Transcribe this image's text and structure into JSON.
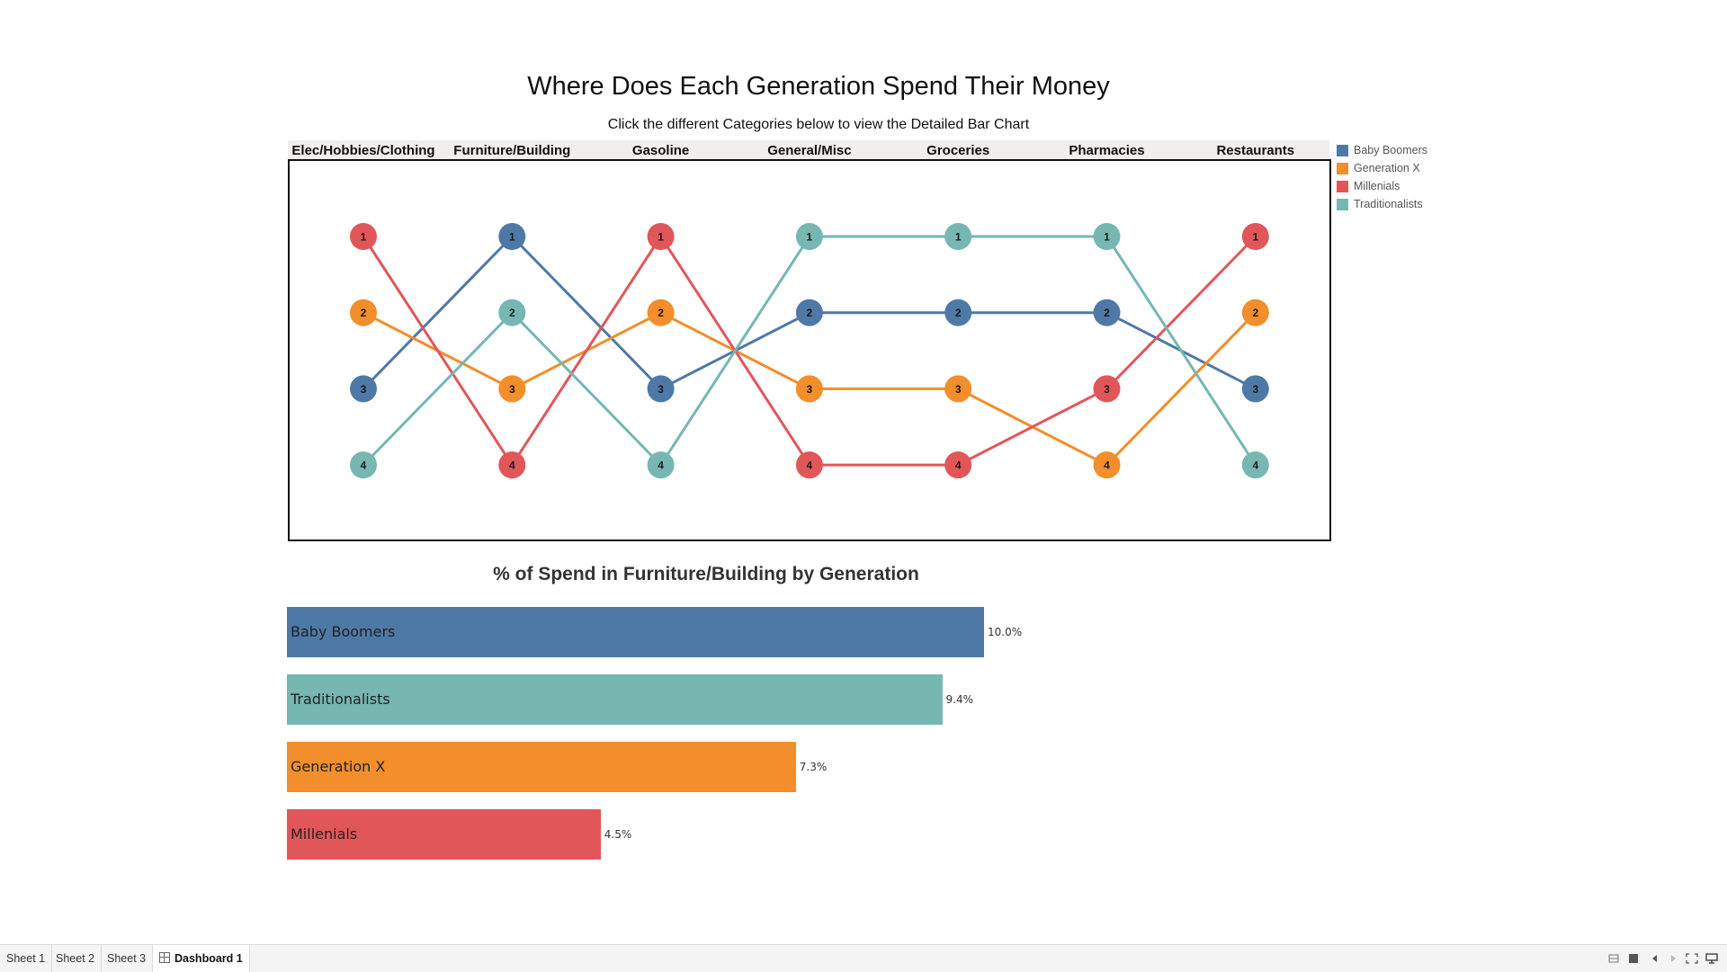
{
  "dashboard": {
    "title": "Where Does Each Generation Spend Their Money",
    "subtitle": "Click the different Categories below to view the Detailed Bar Chart"
  },
  "chart_data": [
    {
      "type": "line",
      "categories": [
        "Elec/Hobbies/Clothing",
        "Furniture/Building",
        "Gasoline",
        "General/Misc",
        "Groceries",
        "Pharmacies",
        "Restaurants"
      ],
      "y_reversed": true,
      "ylim": [
        1,
        4
      ],
      "series": [
        {
          "name": "Baby Boomers",
          "color": "#4e79a7",
          "values": [
            3,
            1,
            3,
            2,
            2,
            2,
            3
          ]
        },
        {
          "name": "Generation X",
          "color": "#f28e2b",
          "values": [
            2,
            3,
            2,
            3,
            3,
            4,
            2
          ]
        },
        {
          "name": "Millenials",
          "color": "#e15759",
          "values": [
            1,
            4,
            1,
            4,
            4,
            3,
            1
          ]
        },
        {
          "name": "Traditionalists",
          "color": "#76b7b2",
          "values": [
            4,
            2,
            4,
            1,
            1,
            1,
            4
          ]
        }
      ],
      "legend": "right"
    },
    {
      "type": "bar",
      "orientation": "horizontal",
      "title": "% of Spend in Furniture/Building by Generation",
      "categories": [
        "Baby Boomers",
        "Traditionalists",
        "Generation X",
        "Millenials"
      ],
      "values": [
        10.0,
        9.4,
        7.3,
        4.5
      ],
      "value_labels": [
        "10.0%",
        "9.4%",
        "7.3%",
        "4.5%"
      ],
      "colors": [
        "#4e79a7",
        "#76b7b2",
        "#f28e2b",
        "#e15759"
      ]
    }
  ],
  "tabs": [
    {
      "label": "Sheet 1"
    },
    {
      "label": "Sheet 2"
    },
    {
      "label": "Sheet 3"
    },
    {
      "label": "Dashboard 1"
    }
  ]
}
